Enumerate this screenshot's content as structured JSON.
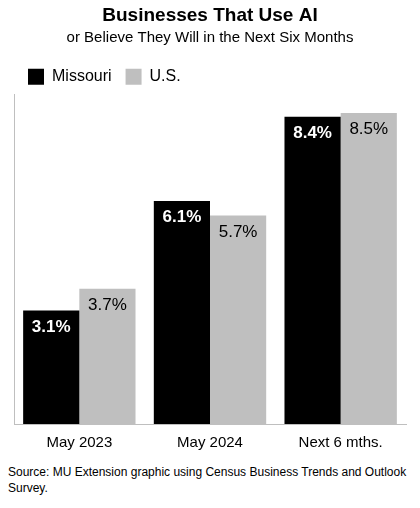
{
  "chart_data": {
    "type": "bar",
    "title": "Businesses That Use AI",
    "subtitle": "or Believe They Will in the Next Six Months",
    "caption": "Source: MU Extension graphic using Census Business Trends and Outlook Survey.",
    "categories": [
      "May 2023",
      "May 2024",
      "Next 6 mths."
    ],
    "series": [
      {
        "name": "Missouri",
        "color": "#000000",
        "values": [
          3.1,
          6.1,
          8.4
        ],
        "value_labels": [
          "3.1%",
          "6.1%",
          "8.4%"
        ]
      },
      {
        "name": "U.S.",
        "color": "#bfbfbf",
        "values": [
          3.7,
          5.7,
          8.5
        ],
        "value_labels": [
          "3.7%",
          "5.7%",
          "8.5%"
        ]
      }
    ],
    "ylim": [
      0,
      9
    ],
    "grid": false,
    "legend": "top-left",
    "data_labels": true,
    "tick_labels": "x"
  }
}
